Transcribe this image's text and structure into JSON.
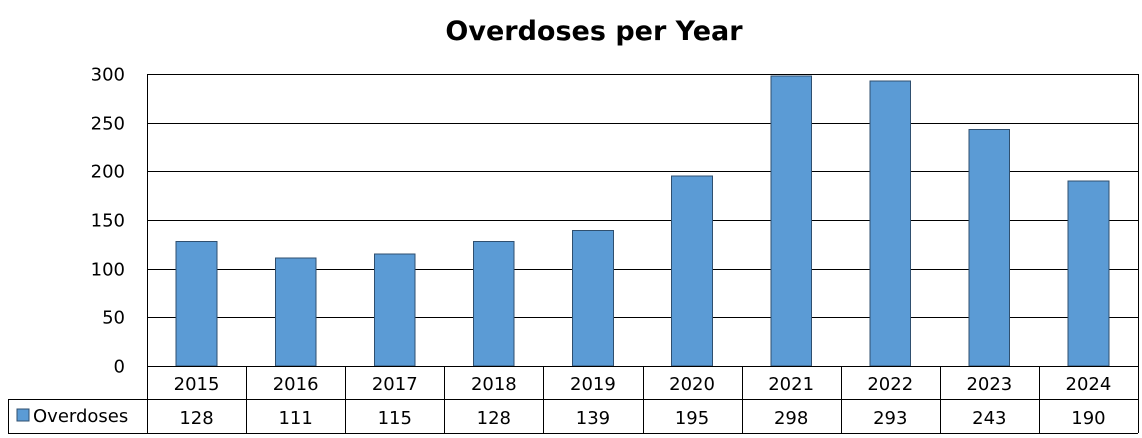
{
  "chart_data": {
    "type": "bar",
    "title": "Overdoses per Year",
    "categories": [
      "2015",
      "2016",
      "2017",
      "2018",
      "2019",
      "2020",
      "2021",
      "2022",
      "2023",
      "2024"
    ],
    "series": [
      {
        "name": "Overdoses",
        "values": [
          128,
          111,
          115,
          128,
          139,
          195,
          298,
          293,
          243,
          190
        ],
        "color": "#5b9bd5"
      }
    ],
    "ylim": [
      0,
      300
    ],
    "yticks": [
      0,
      50,
      100,
      150,
      200,
      250,
      300
    ],
    "grid": true,
    "legend": "data-table-left",
    "data_table": true
  }
}
